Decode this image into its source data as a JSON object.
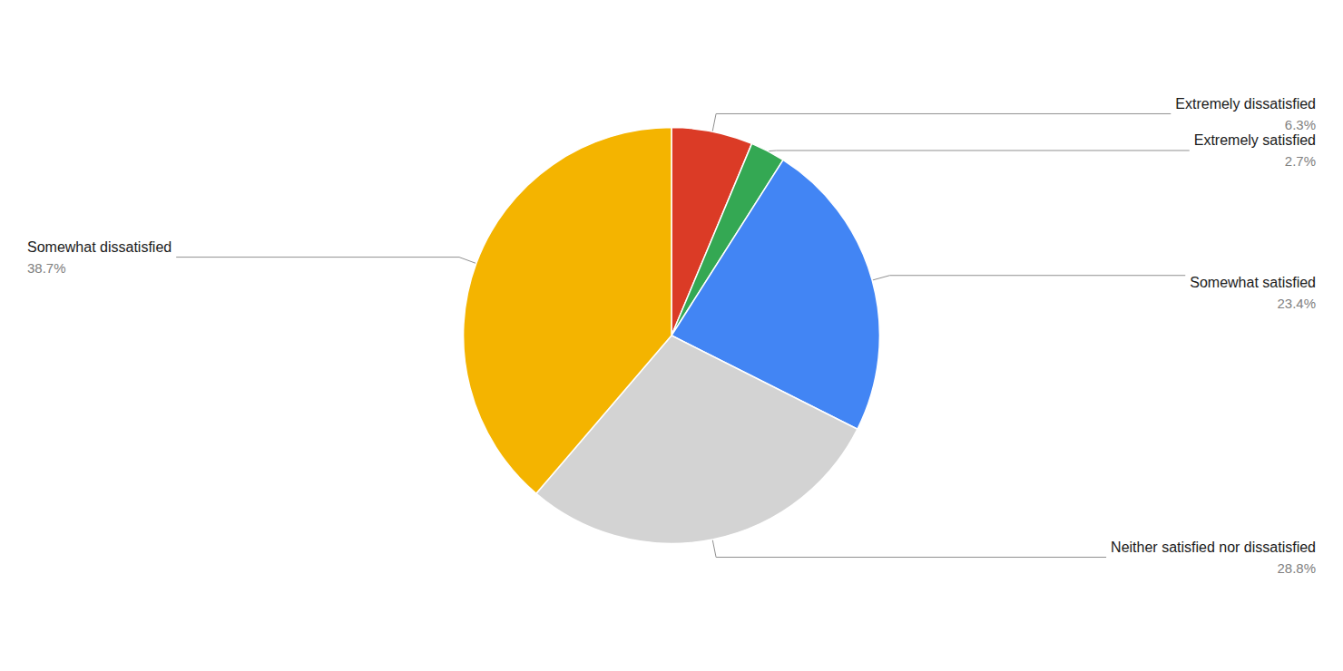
{
  "chart_data": {
    "type": "pie",
    "categories": [
      "Extremely dissatisfied",
      "Extremely satisfied",
      "Somewhat satisfied",
      "Neither satisfied nor dissatisfied",
      "Somewhat dissatisfied"
    ],
    "values": [
      6.3,
      2.7,
      23.4,
      28.8,
      38.7
    ],
    "value_labels": [
      "6.3%",
      "2.7%",
      "23.4%",
      "28.8%",
      "38.7%"
    ],
    "colors": [
      "#db3b26",
      "#34a853",
      "#4285f4",
      "#d3d3d3",
      "#f4b400"
    ],
    "data_labels": true
  }
}
